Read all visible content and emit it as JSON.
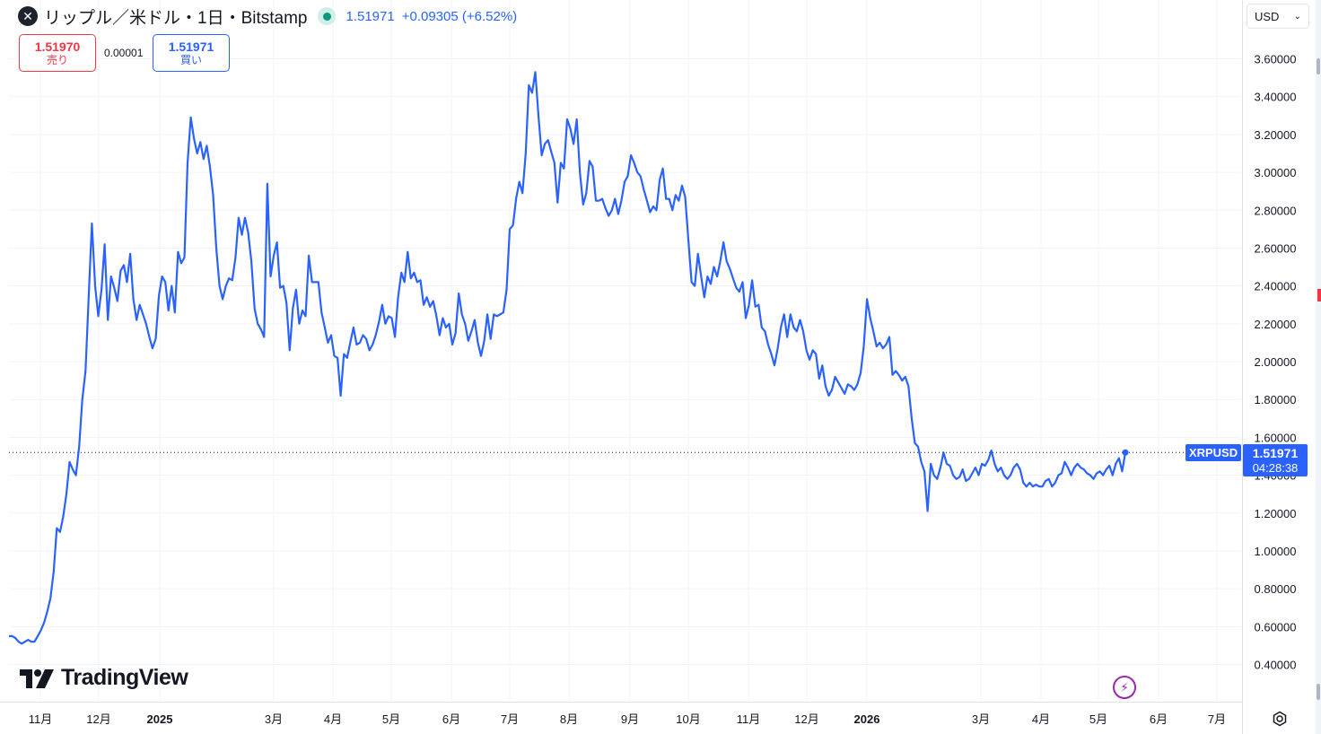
{
  "header": {
    "symbol_icon": "✕",
    "title": "リップル／米ドル・1日・Bitstamp",
    "last_price": "1.51971",
    "change": "+0.09305 (+6.52%)"
  },
  "trade": {
    "sell_price": "1.51970",
    "sell_label": "売り",
    "spread": "0.00001",
    "buy_price": "1.51971",
    "buy_label": "買い"
  },
  "currency_selector": {
    "value": "USD"
  },
  "brand": {
    "name": "TradingView"
  },
  "price_marker": {
    "ticker": "XRPUSD",
    "price": "1.51971",
    "countdown": "04:28:38"
  },
  "colors": {
    "line": "#2962ff",
    "grid": "#f0f3fa",
    "accent": "#2962ff",
    "sell": "#f23645"
  },
  "icons": [
    "xrp-logo-icon",
    "live-status-icon",
    "chevron-down-icon",
    "lightning-icon",
    "settings-icon"
  ],
  "chart_data": {
    "type": "line",
    "series": [
      {
        "values": [
          0.55,
          0.55,
          0.54,
          0.52,
          0.51,
          0.52,
          0.53,
          0.52,
          0.52,
          0.55,
          0.58,
          0.62,
          0.68,
          0.75,
          0.89,
          1.12,
          1.1,
          1.18,
          1.3,
          1.47,
          1.43,
          1.4,
          1.55,
          1.8,
          1.95,
          2.35,
          2.73,
          2.4,
          2.24,
          2.38,
          2.62,
          2.22,
          2.45,
          2.39,
          2.32,
          2.48,
          2.51,
          2.42,
          2.57,
          2.33,
          2.22,
          2.3,
          2.25,
          2.2,
          2.13,
          2.07,
          2.12,
          2.35,
          2.45,
          2.42,
          2.27,
          2.4,
          2.26,
          2.58,
          2.52,
          2.55,
          3.05,
          3.29,
          3.18,
          3.1,
          3.16,
          3.07,
          3.14,
          3.03,
          2.88,
          2.6,
          2.4,
          2.33,
          2.4,
          2.44,
          2.43,
          2.55,
          2.76,
          2.67,
          2.76,
          2.68,
          2.53,
          2.28,
          2.2,
          2.17,
          2.13,
          2.94,
          2.45,
          2.56,
          2.63,
          2.39,
          2.4,
          2.31,
          2.06,
          2.28,
          2.38,
          2.2,
          2.27,
          2.24,
          2.56,
          2.42,
          2.42,
          2.42,
          2.26,
          2.18,
          2.1,
          2.14,
          2.03,
          2.02,
          1.82,
          2.04,
          2.02,
          2.1,
          2.18,
          2.09,
          2.1,
          2.14,
          2.12,
          2.06,
          2.09,
          2.14,
          2.21,
          2.3,
          2.2,
          2.24,
          2.23,
          2.13,
          2.34,
          2.47,
          2.42,
          2.58,
          2.44,
          2.47,
          2.42,
          2.43,
          2.3,
          2.34,
          2.29,
          2.32,
          2.24,
          2.14,
          2.23,
          2.18,
          2.2,
          2.09,
          2.15,
          2.36,
          2.25,
          2.2,
          2.11,
          2.16,
          2.22,
          2.1,
          2.03,
          2.11,
          2.25,
          2.12,
          2.25,
          2.24,
          2.25,
          2.26,
          2.38,
          2.7,
          2.72,
          2.86,
          2.95,
          2.89,
          3.1,
          3.46,
          3.42,
          3.53,
          3.3,
          3.09,
          3.15,
          3.17,
          3.11,
          3.05,
          2.84,
          3.05,
          3.02,
          3.28,
          3.23,
          3.15,
          3.28,
          3.0,
          2.83,
          2.89,
          3.06,
          3.03,
          2.85,
          2.85,
          2.86,
          2.81,
          2.77,
          2.8,
          2.86,
          2.78,
          2.85,
          2.95,
          2.98,
          3.09,
          3.05,
          3.0,
          2.98,
          2.91,
          2.85,
          2.79,
          2.82,
          2.8,
          2.96,
          3.02,
          2.86,
          2.86,
          2.8,
          2.88,
          2.85,
          2.93,
          2.87,
          2.64,
          2.42,
          2.4,
          2.57,
          2.45,
          2.34,
          2.45,
          2.41,
          2.5,
          2.45,
          2.53,
          2.63,
          2.53,
          2.49,
          2.44,
          2.39,
          2.37,
          2.42,
          2.23,
          2.3,
          2.43,
          2.29,
          2.3,
          2.18,
          2.16,
          2.09,
          2.04,
          1.98,
          2.07,
          2.18,
          2.25,
          2.13,
          2.25,
          2.18,
          2.16,
          2.22,
          2.16,
          2.06,
          2.01,
          2.06,
          2.04,
          1.91,
          1.98,
          1.87,
          1.82,
          1.85,
          1.92,
          1.89,
          1.86,
          1.83,
          1.88,
          1.87,
          1.85,
          1.88,
          1.94,
          2.08,
          2.33,
          2.23,
          2.16,
          2.08,
          2.1,
          2.07,
          2.09,
          2.13,
          1.93,
          1.95,
          1.93,
          1.9,
          1.92,
          1.87,
          1.7,
          1.57,
          1.55,
          1.47,
          1.42,
          1.21,
          1.46,
          1.4,
          1.38,
          1.44,
          1.52,
          1.46,
          1.45,
          1.4,
          1.38,
          1.39,
          1.43,
          1.37,
          1.38,
          1.41,
          1.44,
          1.4,
          1.46,
          1.45,
          1.48,
          1.53,
          1.46,
          1.42,
          1.44,
          1.4,
          1.38,
          1.4,
          1.44,
          1.46,
          1.43,
          1.36,
          1.34,
          1.36,
          1.34,
          1.35,
          1.34,
          1.34,
          1.37,
          1.38,
          1.34,
          1.36,
          1.4,
          1.41,
          1.47,
          1.44,
          1.4,
          1.44,
          1.46,
          1.44,
          1.43,
          1.41,
          1.4,
          1.38,
          1.41,
          1.42,
          1.4,
          1.43,
          1.45,
          1.4,
          1.46,
          1.49,
          1.42,
          1.52
        ]
      }
    ],
    "ylim": [
      0.28,
      3.8
    ],
    "yticks": [
      0.4,
      0.6,
      0.8,
      1.0,
      1.2,
      1.4,
      1.6,
      1.8,
      2.0,
      2.2,
      2.4,
      2.6,
      2.8,
      3.0,
      3.2,
      3.4,
      3.6
    ],
    "ytick_labels": [
      "0.40000",
      "0.60000",
      "0.80000",
      "1.00000",
      "1.20000",
      "1.40000",
      "1.60000",
      "1.80000",
      "2.00000",
      "2.20000",
      "2.40000",
      "2.60000",
      "2.80000",
      "3.00000",
      "3.20000",
      "3.40000",
      "3.60000"
    ],
    "xtick_labels": [
      "11月",
      "12月",
      "2025",
      "3月",
      "4月",
      "5月",
      "6月",
      "7月",
      "8月",
      "9月",
      "10月",
      "11月",
      "12月",
      "2026",
      "3月",
      "4月",
      "5月",
      "6月",
      "7月"
    ],
    "xtick_bold": [
      false,
      false,
      true,
      false,
      false,
      false,
      false,
      false,
      false,
      false,
      false,
      false,
      false,
      true,
      false,
      false,
      false,
      false,
      false
    ],
    "last_value": 1.51971,
    "grid": true
  }
}
